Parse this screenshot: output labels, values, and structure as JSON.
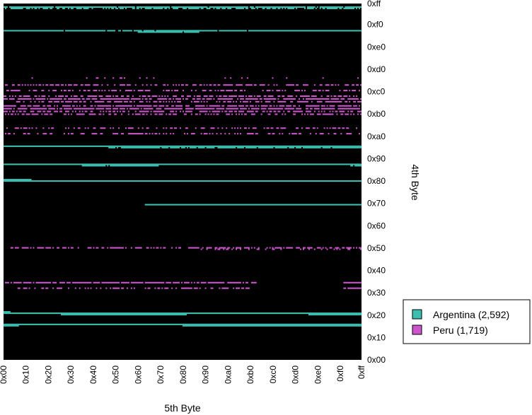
{
  "chart_data": {
    "type": "heatmap",
    "title": "",
    "xlabel": "5th Byte",
    "ylabel": "4th Byte",
    "xlim": [
      0,
      255
    ],
    "ylim": [
      0,
      255
    ],
    "background": "#000000",
    "x_ticks": [
      {
        "value": 0,
        "label": "0x00"
      },
      {
        "value": 16,
        "label": "0x10"
      },
      {
        "value": 32,
        "label": "0x20"
      },
      {
        "value": 48,
        "label": "0x30"
      },
      {
        "value": 64,
        "label": "0x40"
      },
      {
        "value": 80,
        "label": "0x50"
      },
      {
        "value": 96,
        "label": "0x60"
      },
      {
        "value": 112,
        "label": "0x70"
      },
      {
        "value": 128,
        "label": "0x80"
      },
      {
        "value": 144,
        "label": "0x90"
      },
      {
        "value": 160,
        "label": "0xa0"
      },
      {
        "value": 176,
        "label": "0xb0"
      },
      {
        "value": 192,
        "label": "0xc0"
      },
      {
        "value": 208,
        "label": "0xd0"
      },
      {
        "value": 224,
        "label": "0xe0"
      },
      {
        "value": 240,
        "label": "0xf0"
      },
      {
        "value": 255,
        "label": "0xff"
      }
    ],
    "y_ticks": [
      {
        "value": 0,
        "label": "0x00"
      },
      {
        "value": 16,
        "label": "0x10"
      },
      {
        "value": 32,
        "label": "0x20"
      },
      {
        "value": 48,
        "label": "0x30"
      },
      {
        "value": 64,
        "label": "0x40"
      },
      {
        "value": 80,
        "label": "0x50"
      },
      {
        "value": 96,
        "label": "0x60"
      },
      {
        "value": 112,
        "label": "0x70"
      },
      {
        "value": 128,
        "label": "0x80"
      },
      {
        "value": 144,
        "label": "0x90"
      },
      {
        "value": 160,
        "label": "0xa0"
      },
      {
        "value": 176,
        "label": "0xb0"
      },
      {
        "value": 192,
        "label": "0xc0"
      },
      {
        "value": 208,
        "label": "0xd0"
      },
      {
        "value": 224,
        "label": "0xe0"
      },
      {
        "value": 240,
        "label": "0xf0"
      },
      {
        "value": 255,
        "label": "0xff"
      }
    ],
    "legend_placement": "right",
    "series": [
      {
        "name": "Argentina (2,592)",
        "color": "#3cbfb0",
        "rows": [
          {
            "y": 253,
            "x": [
              0,
              255
            ],
            "density": 0.95
          },
          {
            "y": 252,
            "x": [
              0,
              255
            ],
            "density": 0.6
          },
          {
            "y": 236,
            "x": [
              0,
              255
            ],
            "density": 0.95
          },
          {
            "y": 235,
            "x": [
              96,
              140
            ],
            "density": 0.9
          },
          {
            "y": 153,
            "x": [
              0,
              255
            ],
            "density": 1.0
          },
          {
            "y": 152,
            "x": [
              75,
              255
            ],
            "density": 0.9
          },
          {
            "y": 140,
            "x": [
              0,
              255
            ],
            "density": 1.0
          },
          {
            "y": 139,
            "x": [
              55,
              110
            ],
            "density": 0.9
          },
          {
            "y": 139,
            "x": [
              248,
              255
            ],
            "density": 0.9
          },
          {
            "y": 129,
            "x": [
              0,
              19
            ],
            "density": 1.0
          },
          {
            "y": 128,
            "x": [
              0,
              255
            ],
            "density": 1.0
          },
          {
            "y": 111,
            "x": [
              101,
              255
            ],
            "density": 1.0
          },
          {
            "y": 34,
            "x": [
              0,
              4
            ],
            "density": 1.0
          },
          {
            "y": 33,
            "x": [
              0,
              255
            ],
            "density": 1.0
          },
          {
            "y": 32,
            "x": [
              41,
              130
            ],
            "density": 1.0
          },
          {
            "y": 32,
            "x": [
              218,
              255
            ],
            "density": 1.0
          },
          {
            "y": 25,
            "x": [
              0,
              255
            ],
            "density": 1.0
          },
          {
            "y": 24,
            "x": [
              0,
              10
            ],
            "density": 1.0
          },
          {
            "y": 24,
            "x": [
              128,
              255
            ],
            "density": 1.0
          }
        ]
      },
      {
        "name": "Peru (1,719)",
        "color": "#cc55cc",
        "rows": [
          {
            "y": 202,
            "x": [
              20,
              255
            ],
            "density": 0.08
          },
          {
            "y": 197,
            "x": [
              0,
              255
            ],
            "density": 0.5
          },
          {
            "y": 193,
            "x": [
              0,
              255
            ],
            "density": 0.5
          },
          {
            "y": 189,
            "x": [
              0,
              255
            ],
            "density": 0.6
          },
          {
            "y": 187,
            "x": [
              0,
              255
            ],
            "density": 0.75
          },
          {
            "y": 185,
            "x": [
              0,
              255
            ],
            "density": 0.55
          },
          {
            "y": 182,
            "x": [
              0,
              255
            ],
            "density": 0.7
          },
          {
            "y": 180,
            "x": [
              0,
              255
            ],
            "density": 0.85
          },
          {
            "y": 178,
            "x": [
              0,
              255
            ],
            "density": 0.6
          },
          {
            "y": 176,
            "x": [
              0,
              255
            ],
            "density": 0.5
          },
          {
            "y": 166,
            "x": [
              0,
              255
            ],
            "density": 0.35
          },
          {
            "y": 162,
            "x": [
              0,
              255
            ],
            "density": 0.45
          },
          {
            "y": 80,
            "x": [
              0,
              255
            ],
            "density": 0.55
          },
          {
            "y": 79,
            "x": [
              140,
              255
            ],
            "density": 0.3
          },
          {
            "y": 55,
            "x": [
              0,
              180
            ],
            "density": 0.85
          },
          {
            "y": 51,
            "x": [
              10,
              175
            ],
            "density": 0.45
          },
          {
            "y": 55,
            "x": [
              243,
              255
            ],
            "density": 0.9
          },
          {
            "y": 51,
            "x": [
              243,
              255
            ],
            "density": 0.9
          }
        ]
      }
    ]
  }
}
